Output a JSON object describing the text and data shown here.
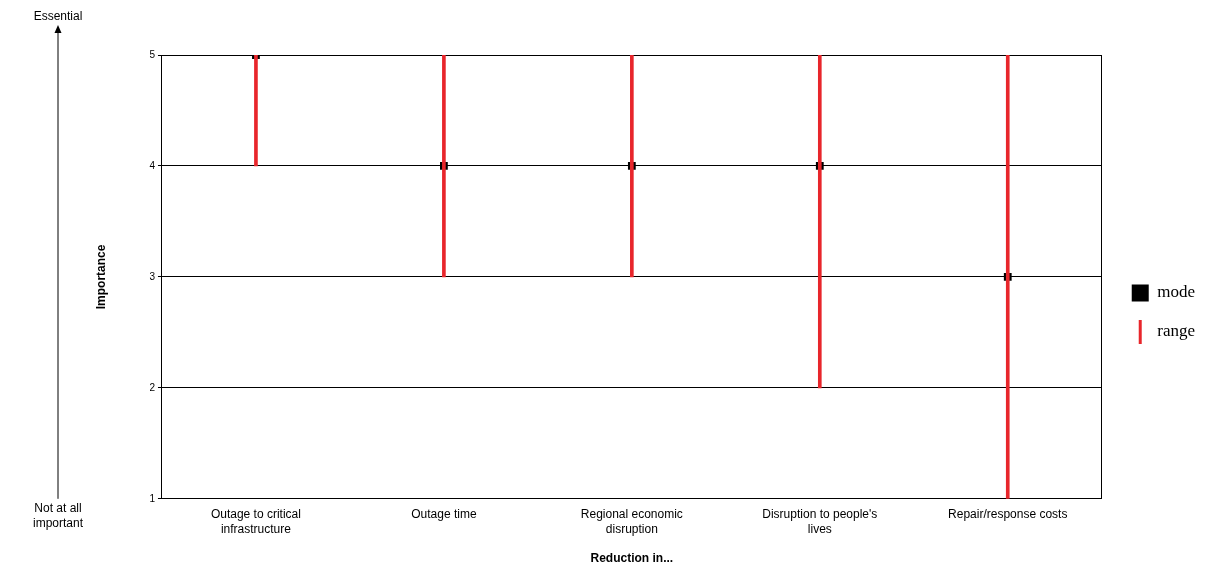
{
  "chart_data": {
    "type": "scatter",
    "xlabel": "Reduction in...",
    "ylabel": "Importance",
    "categories": [
      "Outage to critical infrastructure",
      "Outage time",
      "Regional economic disruption",
      "Disruption to people's lives",
      "Repair/response costs"
    ],
    "series": [
      {
        "name": "mode",
        "color": "#000000",
        "values": [
          5,
          4,
          4,
          4,
          3
        ]
      },
      {
        "name": "range",
        "type": "bar",
        "color": "#e8262b",
        "base": [
          4,
          3,
          3,
          2,
          1
        ],
        "values": [
          1,
          2,
          2,
          3,
          4
        ]
      }
    ],
    "ylim": [
      1,
      5
    ],
    "yticks": [
      1,
      2,
      3,
      4,
      5
    ],
    "grid": "y",
    "legend": "right",
    "marker": "square",
    "annotations": [
      "Essential",
      "Not at all important"
    ]
  }
}
